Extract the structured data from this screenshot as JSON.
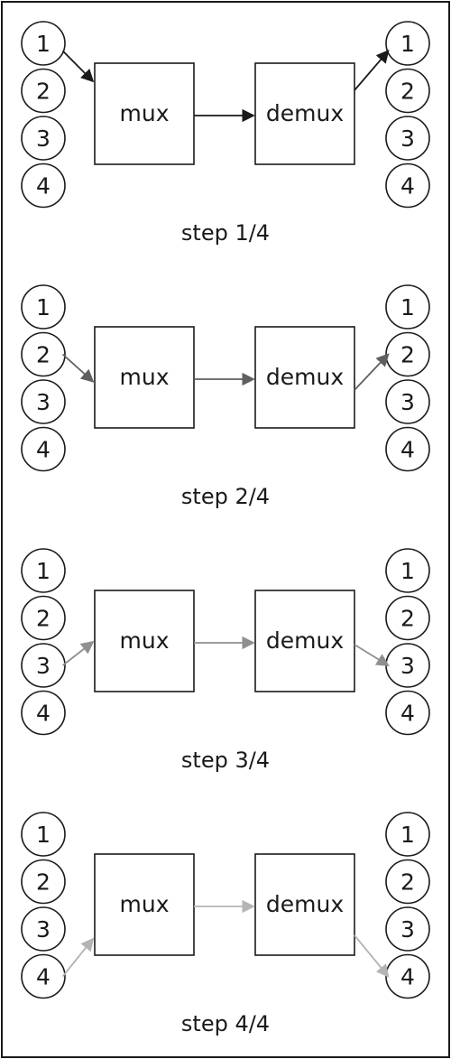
{
  "steps": [
    {
      "label": "step 1/4",
      "active_input": 1,
      "active_output": 1,
      "arrow_color": "#1a1a1a",
      "inputs": [
        "1",
        "2",
        "3",
        "4"
      ],
      "mux_label": "mux",
      "demux_label": "demux",
      "outputs": [
        "1",
        "2",
        "3",
        "4"
      ]
    },
    {
      "label": "step 2/4",
      "active_input": 2,
      "active_output": 2,
      "arrow_color": "#5f5f5f",
      "inputs": [
        "1",
        "2",
        "3",
        "4"
      ],
      "mux_label": "mux",
      "demux_label": "demux",
      "outputs": [
        "1",
        "2",
        "3",
        "4"
      ]
    },
    {
      "label": "step 3/4",
      "active_input": 3,
      "active_output": 3,
      "arrow_color": "#8f8f8f",
      "inputs": [
        "1",
        "2",
        "3",
        "4"
      ],
      "mux_label": "mux",
      "demux_label": "demux",
      "outputs": [
        "1",
        "2",
        "3",
        "4"
      ]
    },
    {
      "label": "step 4/4",
      "active_input": 4,
      "active_output": 4,
      "arrow_color": "#b4b4b4",
      "inputs": [
        "1",
        "2",
        "3",
        "4"
      ],
      "mux_label": "mux",
      "demux_label": "demux",
      "outputs": [
        "1",
        "2",
        "3",
        "4"
      ]
    }
  ]
}
